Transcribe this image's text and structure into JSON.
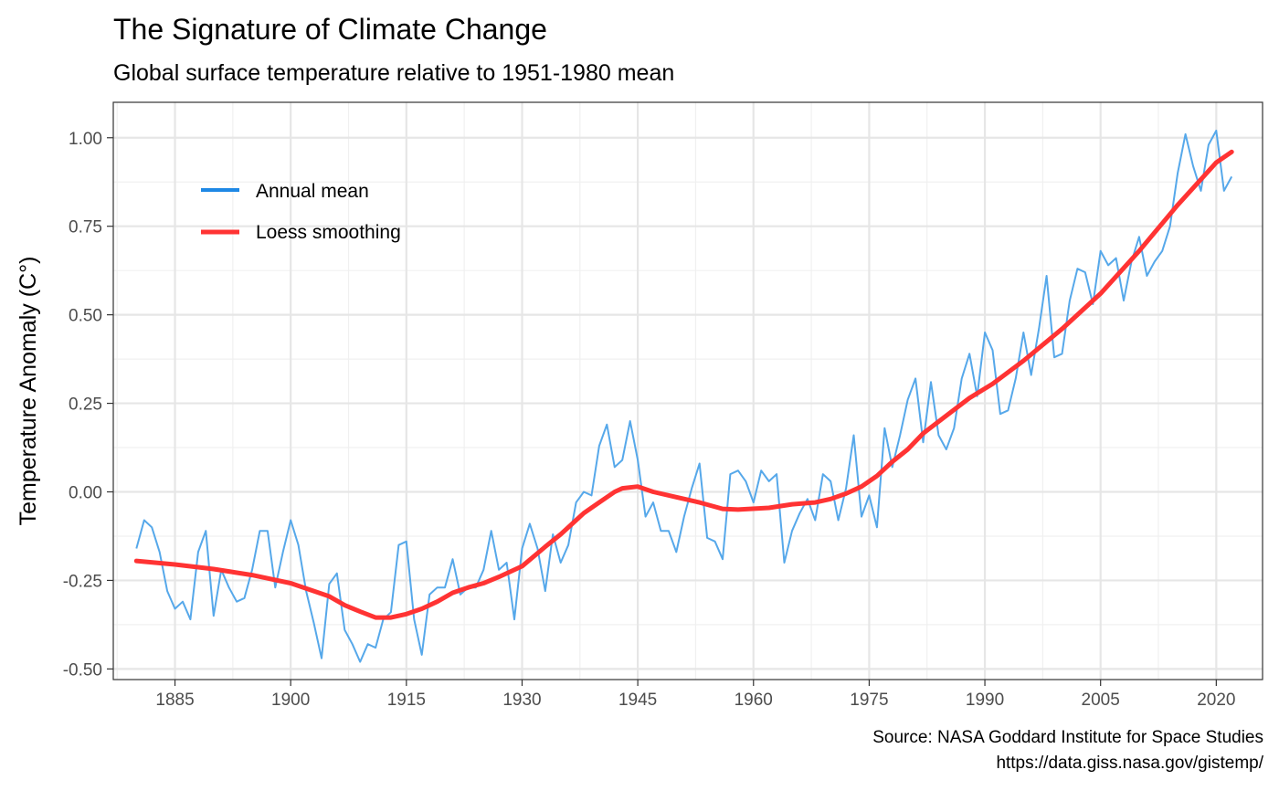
{
  "chart_data": {
    "type": "line",
    "title": "The Signature of Climate Change",
    "subtitle": "Global surface temperature relative to 1951-1980 mean",
    "xlabel": "",
    "ylabel": "Temperature Anomaly (C°)",
    "caption": [
      "Source: NASA Goddard Institute for Space Studies",
      "https://data.giss.nasa.gov/gistemp/"
    ],
    "xlim": [
      1877,
      2026
    ],
    "ylim": [
      -0.53,
      1.1
    ],
    "x_ticks": [
      1885,
      1900,
      1915,
      1930,
      1945,
      1960,
      1975,
      1990,
      2005,
      2020
    ],
    "x_tick_labels": [
      "1885",
      "1900",
      "1915",
      "1930",
      "1945",
      "1960",
      "1975",
      "1990",
      "2005",
      "2020"
    ],
    "y_ticks": [
      -0.5,
      -0.25,
      0,
      0.25,
      0.5,
      0.75,
      1.0
    ],
    "y_tick_labels": [
      "-0.50",
      "-0.25",
      "0.00",
      "0.25",
      "0.50",
      "0.75",
      "1.00"
    ],
    "grid": true,
    "legend_position": "top-left inside",
    "colors": {
      "annual": "#56a8ea",
      "annual_key": "#1e88e5",
      "loess": "#ff3333"
    },
    "series": [
      {
        "name": "Annual mean",
        "x": [
          1880,
          1881,
          1882,
          1883,
          1884,
          1885,
          1886,
          1887,
          1888,
          1889,
          1890,
          1891,
          1892,
          1893,
          1894,
          1895,
          1896,
          1897,
          1898,
          1899,
          1900,
          1901,
          1902,
          1903,
          1904,
          1905,
          1906,
          1907,
          1908,
          1909,
          1910,
          1911,
          1912,
          1913,
          1914,
          1915,
          1916,
          1917,
          1918,
          1919,
          1920,
          1921,
          1922,
          1923,
          1924,
          1925,
          1926,
          1927,
          1928,
          1929,
          1930,
          1931,
          1932,
          1933,
          1934,
          1935,
          1936,
          1937,
          1938,
          1939,
          1940,
          1941,
          1942,
          1943,
          1944,
          1945,
          1946,
          1947,
          1948,
          1949,
          1950,
          1951,
          1952,
          1953,
          1954,
          1955,
          1956,
          1957,
          1958,
          1959,
          1960,
          1961,
          1962,
          1963,
          1964,
          1965,
          1966,
          1967,
          1968,
          1969,
          1970,
          1971,
          1972,
          1973,
          1974,
          1975,
          1976,
          1977,
          1978,
          1979,
          1980,
          1981,
          1982,
          1983,
          1984,
          1985,
          1986,
          1987,
          1988,
          1989,
          1990,
          1991,
          1992,
          1993,
          1994,
          1995,
          1996,
          1997,
          1998,
          1999,
          2000,
          2001,
          2002,
          2003,
          2004,
          2005,
          2006,
          2007,
          2008,
          2009,
          2010,
          2011,
          2012,
          2013,
          2014,
          2015,
          2016,
          2017,
          2018,
          2019,
          2020,
          2021,
          2022
        ],
        "values": [
          -0.16,
          -0.08,
          -0.1,
          -0.17,
          -0.28,
          -0.33,
          -0.31,
          -0.36,
          -0.17,
          -0.11,
          -0.35,
          -0.22,
          -0.27,
          -0.31,
          -0.3,
          -0.22,
          -0.11,
          -0.11,
          -0.27,
          -0.17,
          -0.08,
          -0.15,
          -0.28,
          -0.37,
          -0.47,
          -0.26,
          -0.23,
          -0.39,
          -0.43,
          -0.48,
          -0.43,
          -0.44,
          -0.36,
          -0.34,
          -0.15,
          -0.14,
          -0.36,
          -0.46,
          -0.29,
          -0.27,
          -0.27,
          -0.19,
          -0.29,
          -0.27,
          -0.27,
          -0.22,
          -0.11,
          -0.22,
          -0.2,
          -0.36,
          -0.16,
          -0.09,
          -0.16,
          -0.28,
          -0.12,
          -0.2,
          -0.15,
          -0.03,
          0.0,
          -0.01,
          0.13,
          0.19,
          0.07,
          0.09,
          0.2,
          0.09,
          -0.07,
          -0.03,
          -0.11,
          -0.11,
          -0.17,
          -0.07,
          0.01,
          0.08,
          -0.13,
          -0.14,
          -0.19,
          0.05,
          0.06,
          0.03,
          -0.03,
          0.06,
          0.03,
          0.05,
          -0.2,
          -0.11,
          -0.06,
          -0.02,
          -0.08,
          0.05,
          0.03,
          -0.08,
          0.01,
          0.16,
          -0.07,
          -0.01,
          -0.1,
          0.18,
          0.07,
          0.16,
          0.26,
          0.32,
          0.14,
          0.31,
          0.16,
          0.12,
          0.18,
          0.32,
          0.39,
          0.27,
          0.45,
          0.4,
          0.22,
          0.23,
          0.32,
          0.45,
          0.33,
          0.46,
          0.61,
          0.38,
          0.39,
          0.54,
          0.63,
          0.62,
          0.53,
          0.68,
          0.64,
          0.66,
          0.54,
          0.65,
          0.72,
          0.61,
          0.65,
          0.68,
          0.75,
          0.9,
          1.01,
          0.92,
          0.85,
          0.98,
          1.02,
          0.85,
          0.89
        ]
      },
      {
        "name": "Loess smoothing",
        "x": [
          1880,
          1885,
          1890,
          1895,
          1900,
          1903,
          1905,
          1907,
          1909,
          1911,
          1913,
          1915,
          1917,
          1919,
          1921,
          1923,
          1925,
          1927,
          1930,
          1933,
          1935,
          1938,
          1940,
          1942,
          1943,
          1945,
          1947,
          1950,
          1953,
          1956,
          1958,
          1962,
          1965,
          1968,
          1970,
          1972,
          1974,
          1976,
          1978,
          1980,
          1982,
          1985,
          1988,
          1991,
          1995,
          2000,
          2005,
          2010,
          2015,
          2020,
          2022
        ],
        "values": [
          -0.195,
          -0.205,
          -0.218,
          -0.235,
          -0.258,
          -0.28,
          -0.295,
          -0.32,
          -0.338,
          -0.355,
          -0.355,
          -0.345,
          -0.33,
          -0.31,
          -0.285,
          -0.27,
          -0.258,
          -0.24,
          -0.21,
          -0.155,
          -0.12,
          -0.06,
          -0.03,
          0.0,
          0.01,
          0.015,
          0.0,
          -0.015,
          -0.03,
          -0.048,
          -0.05,
          -0.045,
          -0.035,
          -0.03,
          -0.02,
          -0.005,
          0.015,
          0.045,
          0.085,
          0.12,
          0.165,
          0.215,
          0.265,
          0.305,
          0.37,
          0.46,
          0.56,
          0.68,
          0.81,
          0.93,
          0.96
        ]
      }
    ]
  }
}
